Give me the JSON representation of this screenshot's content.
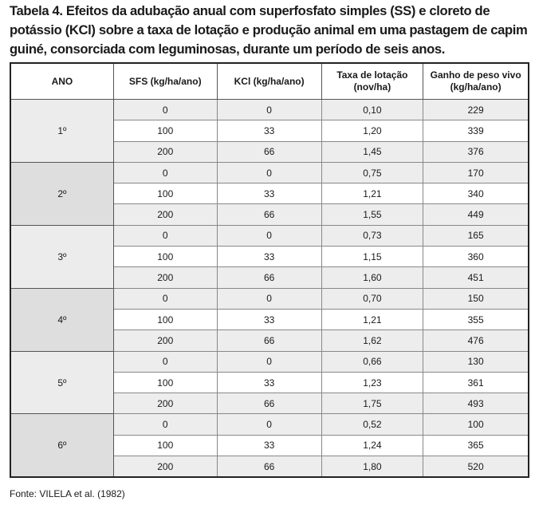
{
  "title": "Tabela 4. Efeitos da adubação anual com superfosfato simples (SS) e cloreto de potássio (KCl) sobre a taxa de lotação e produção animal em uma pastagem de capim guiné, consorciada com leguminosas, durante um período de seis anos.",
  "table": {
    "header": [
      "ANO",
      "SFS (kg/ha/ano)",
      "KCl (kg/ha/ano)",
      "Taxa de lotação (nov/ha)",
      "Ganho de peso vivo (kg/ha/ano)"
    ],
    "groups": [
      {
        "ano": "1º",
        "rows": [
          [
            "0",
            "0",
            "0,10",
            "229"
          ],
          [
            "100",
            "33",
            "1,20",
            "339"
          ],
          [
            "200",
            "66",
            "1,45",
            "376"
          ]
        ]
      },
      {
        "ano": "2º",
        "rows": [
          [
            "0",
            "0",
            "0,75",
            "170"
          ],
          [
            "100",
            "33",
            "1,21",
            "340"
          ],
          [
            "200",
            "66",
            "1,55",
            "449"
          ]
        ]
      },
      {
        "ano": "3º",
        "rows": [
          [
            "0",
            "0",
            "0,73",
            "165"
          ],
          [
            "100",
            "33",
            "1,15",
            "360"
          ],
          [
            "200",
            "66",
            "1,60",
            "451"
          ]
        ]
      },
      {
        "ano": "4º",
        "rows": [
          [
            "0",
            "0",
            "0,70",
            "150"
          ],
          [
            "100",
            "33",
            "1,21",
            "355"
          ],
          [
            "200",
            "66",
            "1,62",
            "476"
          ]
        ]
      },
      {
        "ano": "5º",
        "rows": [
          [
            "0",
            "0",
            "0,66",
            "130"
          ],
          [
            "100",
            "33",
            "1,23",
            "361"
          ],
          [
            "200",
            "66",
            "1,75",
            "493"
          ]
        ]
      },
      {
        "ano": "6º",
        "rows": [
          [
            "0",
            "0",
            "0,52",
            "100"
          ],
          [
            "100",
            "33",
            "1,24",
            "365"
          ],
          [
            "200",
            "66",
            "1,80",
            "520"
          ]
        ]
      }
    ]
  },
  "source": "Fonte: VILELA et al. (1982)"
}
